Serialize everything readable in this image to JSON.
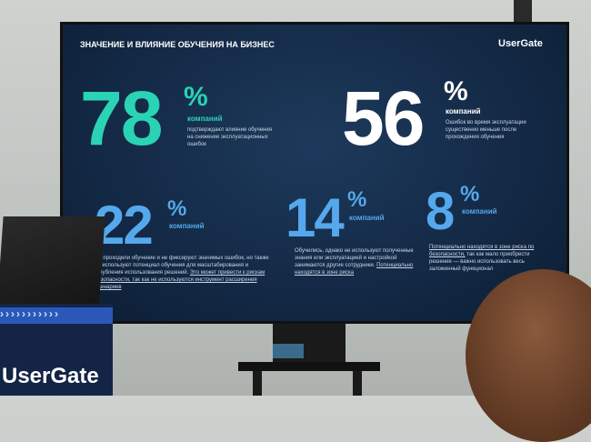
{
  "slide": {
    "title": "ЗНАЧЕНИЕ И ВЛИЯНИЕ ОБУЧЕНИЯ НА БИЗНЕС",
    "logo": "UserGate",
    "stats": [
      {
        "value": 78,
        "unit": "%",
        "label": "компаний",
        "text": "подтверждают влияние обучения на снижение эксплуатационных ошибок"
      },
      {
        "value": 56,
        "unit": "%",
        "label": "компаний",
        "text": "Ошибок во время эксплуатации существенно меньше после прохождения обучения"
      },
      {
        "value": 22,
        "unit": "%",
        "label": "компаний",
        "text": "Не проходили обучение и не фиксируют значимых ошибок, но также не используют потенциал обучения для масштабирования и углубления использования решений.",
        "note": "Это может привести к рискам безопасности, так как не используются инструмент расширения сценариев"
      },
      {
        "value": 14,
        "unit": "%",
        "label": "компаний",
        "text": "Обучились, однако не используют полученные знания или эксплуатацией и настройкой занимаются другие сотрудники.",
        "note": "Потенциально находятся в зоне риска"
      },
      {
        "value": 8,
        "unit": "%",
        "label": "компаний",
        "note": "Потенциально находятся в зоне риска по безопасности,",
        "text": "так как мало приобрести решение — важно использовать весь заложенный функционал"
      }
    ]
  },
  "booth": {
    "logo": "UserGate"
  }
}
